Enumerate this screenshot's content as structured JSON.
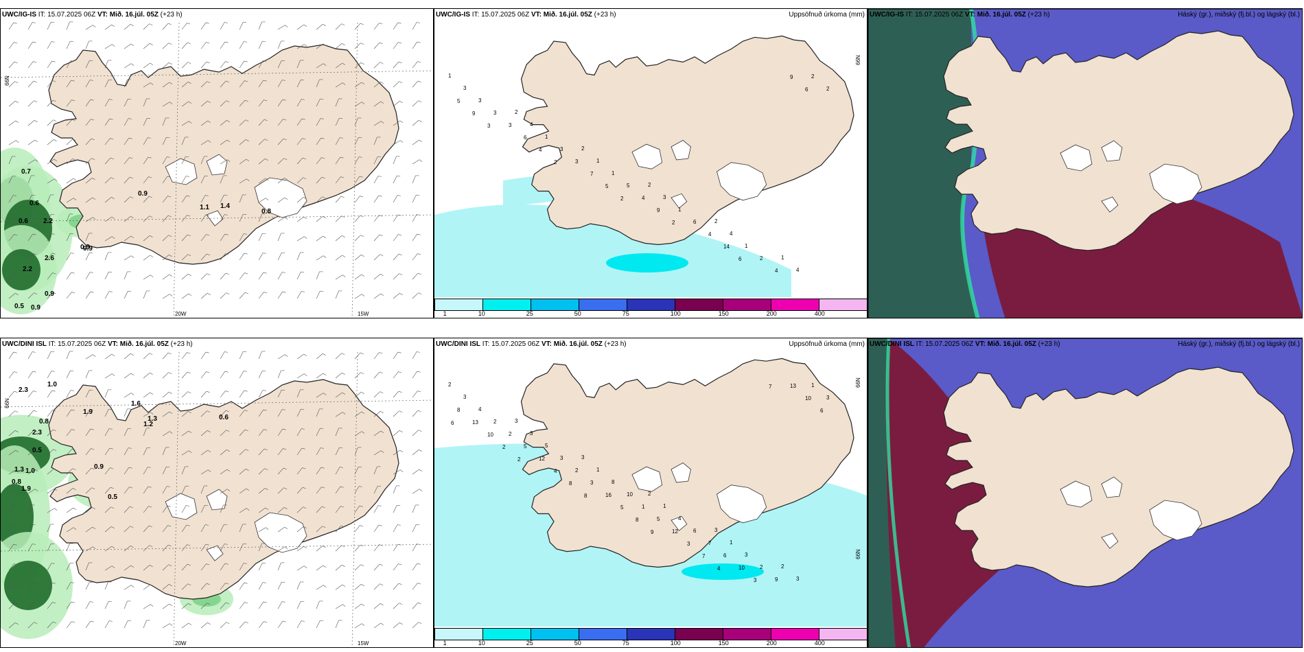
{
  "rows": [
    {
      "model": "UWC/IG-IS",
      "it_label": "IT:",
      "it_value": "15.07.2025 06Z",
      "vt_label": "VT:",
      "vt_value": "Mið. 16.júl. 05Z",
      "lead": "(+23 h)",
      "precip_title": "Uppsöfnuð úrkoma (mm)",
      "cloud_title": "Háský (gr.), miðský (fj.bl.) og lágský (bl.)",
      "wind_values": [
        "0.7",
        "0.6",
        "0.6",
        "2.2",
        "2.6",
        "2.2",
        "0.9",
        "0.9",
        "0.9",
        "0.9",
        "1.1",
        "1.4",
        "0.8",
        "0.5",
        "0.9"
      ],
      "precip_values": [
        "1",
        "2",
        "2",
        "2",
        "2",
        "1",
        "3",
        "4",
        "1",
        "3",
        "4",
        "4",
        "3",
        "1",
        "1",
        "1",
        "1",
        "2",
        "3",
        "3",
        "5",
        "6",
        "2",
        "2",
        "3",
        "3",
        "4",
        "4",
        "4",
        "5",
        "6",
        "7",
        "9",
        "14",
        "9",
        "9",
        "4",
        "5",
        "2",
        "6",
        "6",
        "3",
        "2",
        "2"
      ]
    },
    {
      "model": "UWC/DINI ISL",
      "it_label": "IT:",
      "it_value": "15.07.2025 06Z",
      "vt_label": "VT:",
      "vt_value": "Mið. 16.júl. 05Z",
      "lead": "(+23 h)",
      "precip_title": "Uppsöfnuð úrkoma (mm)",
      "cloud_title": "Háský (gr.), miðský (fj.bl.) og lágský (bl.)",
      "wind_values": [
        "1.0",
        "2.3",
        "1.6",
        "1.9",
        "2.3",
        "0.8",
        "1.3",
        "1.2",
        "0.6",
        "0.5",
        "1.3",
        "1.0",
        "0.9",
        "0.8",
        "1.9",
        "0.5"
      ],
      "precip_values": [
        "2",
        "3",
        "3",
        "2",
        "3",
        "2",
        "3",
        "3",
        "1",
        "1",
        "1",
        "3",
        "4",
        "5",
        "8",
        "4",
        "3",
        "1",
        "2",
        "3",
        "10",
        "6",
        "2",
        "3",
        "2",
        "2",
        "1",
        "7",
        "9",
        "8",
        "5",
        "3",
        "5",
        "6",
        "13",
        "13",
        "12",
        "16",
        "12",
        "10",
        "10",
        "10",
        "4",
        "5",
        "3",
        "3",
        "6",
        "2",
        "8",
        "8",
        "7",
        "7",
        "6",
        "2",
        "8",
        "9",
        "4"
      ]
    }
  ],
  "axis_labels": {
    "lat66": "66N",
    "lon20": "20W",
    "lon15": "15W"
  },
  "legend": {
    "ticks": [
      "1",
      "10",
      "25",
      "50",
      "75",
      "100",
      "150",
      "200",
      "400"
    ],
    "colors": [
      "#c7f7fa",
      "#00f0f0",
      "#00c0f0",
      "#3a6ef0",
      "#2a34b8",
      "#7a0050",
      "#a8007a",
      "#ee00b0",
      "#f4b6f0"
    ]
  },
  "colors": {
    "land": "#f1e1d1",
    "precip_light": "#b0f4f6",
    "precip_mid": "#00e8f0",
    "wind_green_dark": "#1f6b2c",
    "wind_green_light": "#b7ecb8",
    "cloud_high": "#2e5f55",
    "cloud_mid": "#7a1c40",
    "cloud_low": "#5a5ac8",
    "cloud_edge": "#30e0a0"
  }
}
